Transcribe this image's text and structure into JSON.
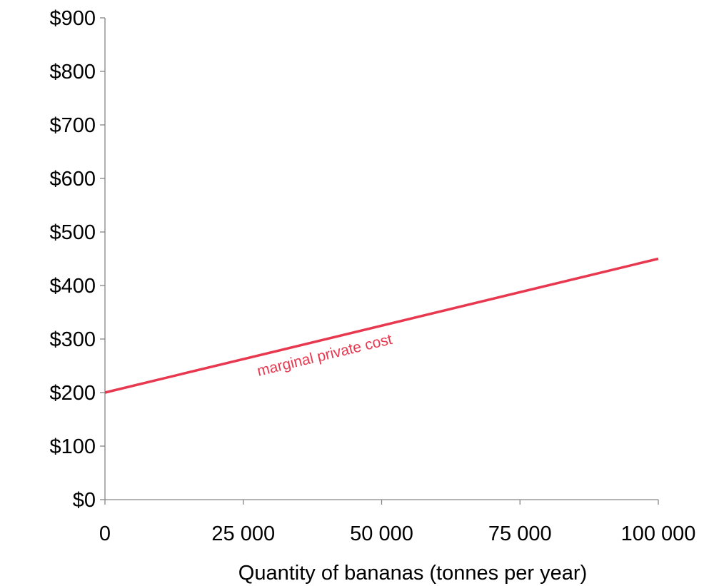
{
  "chart_data": {
    "type": "line",
    "title": "",
    "xlabel": "Quantity of bananas (tonnes per year)",
    "ylabel": "",
    "xlim": [
      0,
      100000
    ],
    "ylim": [
      0,
      900
    ],
    "x_ticks": [
      {
        "value": 0,
        "label": "0"
      },
      {
        "value": 25000,
        "label": "25 000"
      },
      {
        "value": 50000,
        "label": "50 000"
      },
      {
        "value": 75000,
        "label": "75 000"
      },
      {
        "value": 100000,
        "label": "100 000"
      }
    ],
    "y_ticks": [
      {
        "value": 0,
        "label": "$0"
      },
      {
        "value": 100,
        "label": "$100"
      },
      {
        "value": 200,
        "label": "$200"
      },
      {
        "value": 300,
        "label": "$300"
      },
      {
        "value": 400,
        "label": "$400"
      },
      {
        "value": 500,
        "label": "$500"
      },
      {
        "value": 600,
        "label": "$600"
      },
      {
        "value": 700,
        "label": "$700"
      },
      {
        "value": 800,
        "label": "$800"
      },
      {
        "value": 900,
        "label": "$900"
      }
    ],
    "grid": false,
    "series": [
      {
        "name": "marginal private cost",
        "color": "#e8384f",
        "x": [
          0,
          100000
        ],
        "y": [
          200,
          450
        ]
      }
    ]
  }
}
